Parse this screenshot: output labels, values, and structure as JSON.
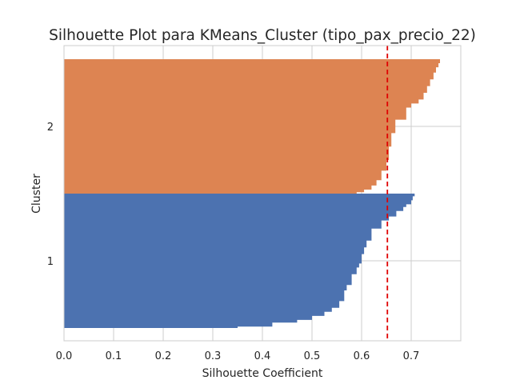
{
  "chart_data": {
    "type": "silhouette",
    "title": "Silhouette Plot para KMeans_Cluster (tipo_pax_precio_22)",
    "xlabel": "Silhouette Coefficient",
    "ylabel": "Cluster",
    "xlim": [
      0.0,
      0.8
    ],
    "xticks": [
      "0.0",
      "0.1",
      "0.2",
      "0.3",
      "0.4",
      "0.5",
      "0.6",
      "0.7"
    ],
    "grid": true,
    "average_silhouette": 0.652,
    "clusters": [
      {
        "label": "1",
        "color": "#4c72b0",
        "profile": [
          [
            0.0,
            0.707
          ],
          [
            0.02,
            0.703
          ],
          [
            0.05,
            0.7
          ],
          [
            0.08,
            0.69
          ],
          [
            0.1,
            0.684
          ],
          [
            0.13,
            0.67
          ],
          [
            0.17,
            0.655
          ],
          [
            0.2,
            0.64
          ],
          [
            0.26,
            0.62
          ],
          [
            0.35,
            0.61
          ],
          [
            0.4,
            0.605
          ],
          [
            0.45,
            0.6
          ],
          [
            0.52,
            0.595
          ],
          [
            0.55,
            0.59
          ],
          [
            0.6,
            0.58
          ],
          [
            0.68,
            0.57
          ],
          [
            0.72,
            0.565
          ],
          [
            0.8,
            0.555
          ],
          [
            0.85,
            0.54
          ],
          [
            0.88,
            0.525
          ],
          [
            0.91,
            0.5
          ],
          [
            0.94,
            0.47
          ],
          [
            0.96,
            0.42
          ],
          [
            0.99,
            0.35
          ],
          [
            1.0,
            0.35
          ]
        ]
      },
      {
        "label": "2",
        "color": "#dd8452",
        "profile": [
          [
            0.0,
            0.758
          ],
          [
            0.03,
            0.755
          ],
          [
            0.06,
            0.75
          ],
          [
            0.1,
            0.745
          ],
          [
            0.15,
            0.738
          ],
          [
            0.2,
            0.732
          ],
          [
            0.25,
            0.725
          ],
          [
            0.3,
            0.715
          ],
          [
            0.33,
            0.7
          ],
          [
            0.36,
            0.69
          ],
          [
            0.45,
            0.668
          ],
          [
            0.55,
            0.66
          ],
          [
            0.65,
            0.655
          ],
          [
            0.75,
            0.65
          ],
          [
            0.83,
            0.64
          ],
          [
            0.9,
            0.63
          ],
          [
            0.94,
            0.62
          ],
          [
            0.97,
            0.605
          ],
          [
            0.99,
            0.59
          ],
          [
            1.0,
            0.59
          ]
        ]
      }
    ]
  }
}
